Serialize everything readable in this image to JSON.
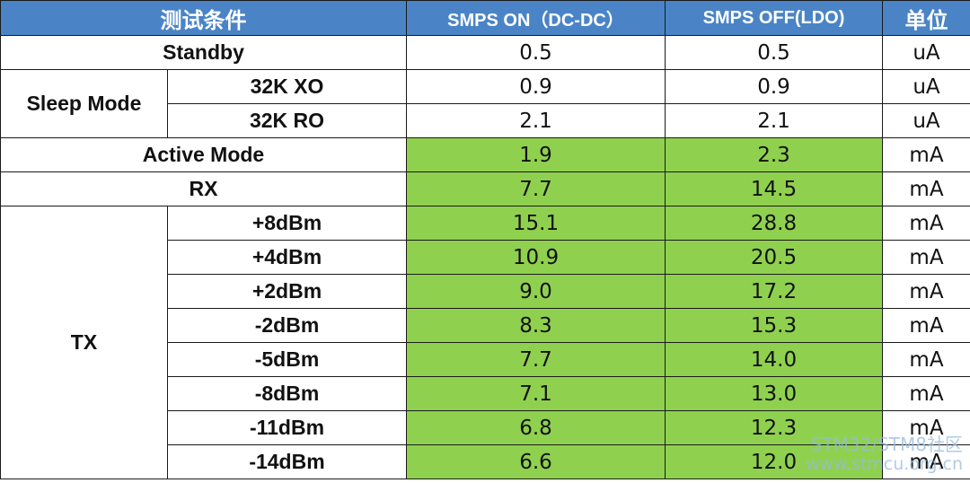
{
  "header": {
    "condition": "测试条件",
    "smps_on": "SMPS ON（DC-DC）",
    "smps_off": "SMPS OFF(LDO)",
    "unit": "单位"
  },
  "rows": {
    "standby": {
      "label": "Standby",
      "on": "0.5",
      "off": "0.5",
      "unit": "uA"
    },
    "sleep_mode": {
      "label": "Sleep Mode",
      "xo": {
        "label": "32K XO",
        "on": "0.9",
        "off": "0.9",
        "unit": "uA"
      },
      "ro": {
        "label": "32K RO",
        "on": "2.1",
        "off": "2.1",
        "unit": "uA"
      }
    },
    "active_mode": {
      "label": "Active Mode",
      "on": "1.9",
      "off": "2.3",
      "unit": "mA"
    },
    "rx": {
      "label": "RX",
      "on": "7.7",
      "off": "14.5",
      "unit": "mA"
    },
    "tx": {
      "label": "TX",
      "items": [
        {
          "label": "+8dBm",
          "on": "15.1",
          "off": "28.8",
          "unit": "mA"
        },
        {
          "label": "+4dBm",
          "on": "10.9",
          "off": "20.5",
          "unit": "mA"
        },
        {
          "label": "+2dBm",
          "on": "9.0",
          "off": "17.2",
          "unit": "mA"
        },
        {
          "label": "-2dBm",
          "on": "8.3",
          "off": "15.3",
          "unit": "mA"
        },
        {
          "label": "-5dBm",
          "on": "7.7",
          "off": "14.0",
          "unit": "mA"
        },
        {
          "label": "-8dBm",
          "on": "7.1",
          "off": "13.0",
          "unit": "mA"
        },
        {
          "label": "-11dBm",
          "on": "6.8",
          "off": "12.3",
          "unit": "mA"
        },
        {
          "label": "-14dBm",
          "on": "6.6",
          "off": "12.0",
          "unit": "mA"
        }
      ]
    }
  },
  "watermark": {
    "line1": "STM32/STM8社区",
    "line2": "www.stmcu.org.cn"
  },
  "colors": {
    "header_bg": "#4a84c6",
    "header_text": "#ffffff",
    "highlight_green": "#8fd14f",
    "border": "#1a1a1a"
  }
}
